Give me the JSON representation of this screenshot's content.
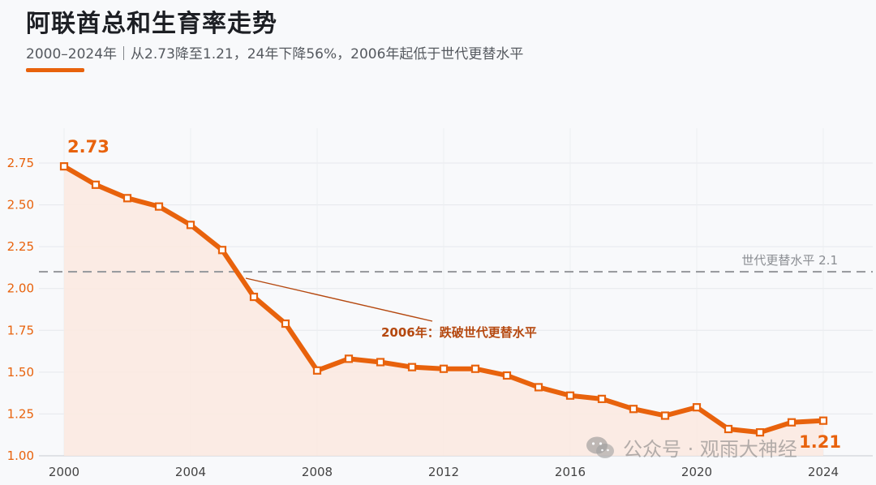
{
  "header": {
    "title": "阿联酋总和生育率走势",
    "subtitle": "2000–2024年｜从2.73降至1.21，24年下降56%，2006年起低于世代更替水平"
  },
  "watermark": {
    "text": "公众号 · 观雨大神经",
    "icon": "wechat-icon"
  },
  "colors": {
    "accent": "#e8620c",
    "annotation": "#b5480f",
    "reference_line": "#9a9ca0",
    "area_fill": "#fbe9df"
  },
  "chart_data": {
    "type": "line",
    "x": [
      2000,
      2001,
      2002,
      2003,
      2004,
      2005,
      2006,
      2007,
      2008,
      2009,
      2010,
      2011,
      2012,
      2013,
      2014,
      2015,
      2016,
      2017,
      2018,
      2019,
      2020,
      2021,
      2022,
      2023,
      2024
    ],
    "series": [
      {
        "values": [
          2.73,
          2.62,
          2.54,
          2.49,
          2.38,
          2.23,
          1.95,
          1.79,
          1.51,
          1.58,
          1.56,
          1.53,
          1.52,
          1.52,
          1.48,
          1.41,
          1.36,
          1.34,
          1.28,
          1.24,
          1.29,
          1.16,
          1.14,
          1.2,
          1.21
        ]
      }
    ],
    "xticks": [
      "2000",
      "2004",
      "2008",
      "2012",
      "2016",
      "2020",
      "2024"
    ],
    "yticks": [
      "1.00",
      "1.25",
      "1.50",
      "1.75",
      "2.00",
      "2.25",
      "2.50",
      "2.75"
    ],
    "xlim": [
      2000,
      2024
    ],
    "ylim": [
      1.0,
      2.75
    ],
    "grid": true,
    "reference_line": {
      "y": 2.1,
      "label": "世代更替水平 2.1"
    },
    "annotations": [
      {
        "x": 2006,
        "text": "2006年：跌破世代更替水平"
      }
    ],
    "start_label": "2.73",
    "end_label": "1.21"
  }
}
